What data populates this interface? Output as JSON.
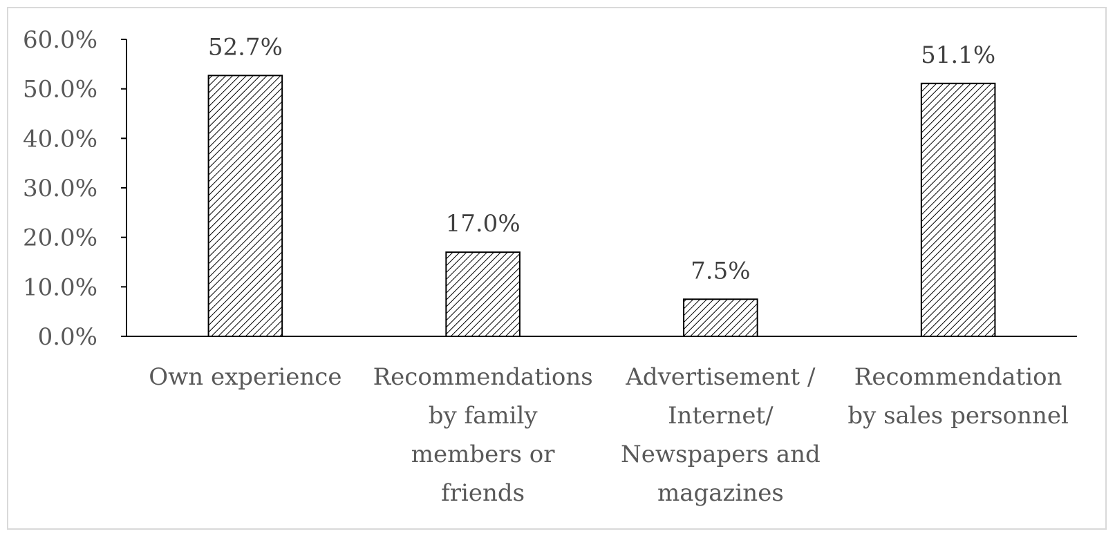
{
  "chart_data": {
    "type": "bar",
    "title": "",
    "xlabel": "",
    "ylabel": "",
    "ylim": [
      0,
      60
    ],
    "y_ticks": [
      "0.0%",
      "10.0%",
      "20.0%",
      "30.0%",
      "40.0%",
      "50.0%",
      "60.0%"
    ],
    "grid": false,
    "legend": "none",
    "bar_fill": "diagonal-hatch",
    "colors": {
      "bar_stroke": "#000000",
      "hatch": "#000000",
      "axis": "#000000",
      "text": "#595959",
      "frame": "#d9d9d9"
    },
    "categories": [
      [
        "Own experience"
      ],
      [
        "Recommendations",
        "by family",
        "members or",
        "friends"
      ],
      [
        "Advertisement /",
        "Internet/",
        "Newspapers and",
        "magazines"
      ],
      [
        "Recommendation",
        "by sales personnel"
      ]
    ],
    "values": [
      52.7,
      17.0,
      7.5,
      51.1
    ],
    "data_labels": [
      "52.7%",
      "17.0%",
      "7.5%",
      "51.1%"
    ]
  }
}
